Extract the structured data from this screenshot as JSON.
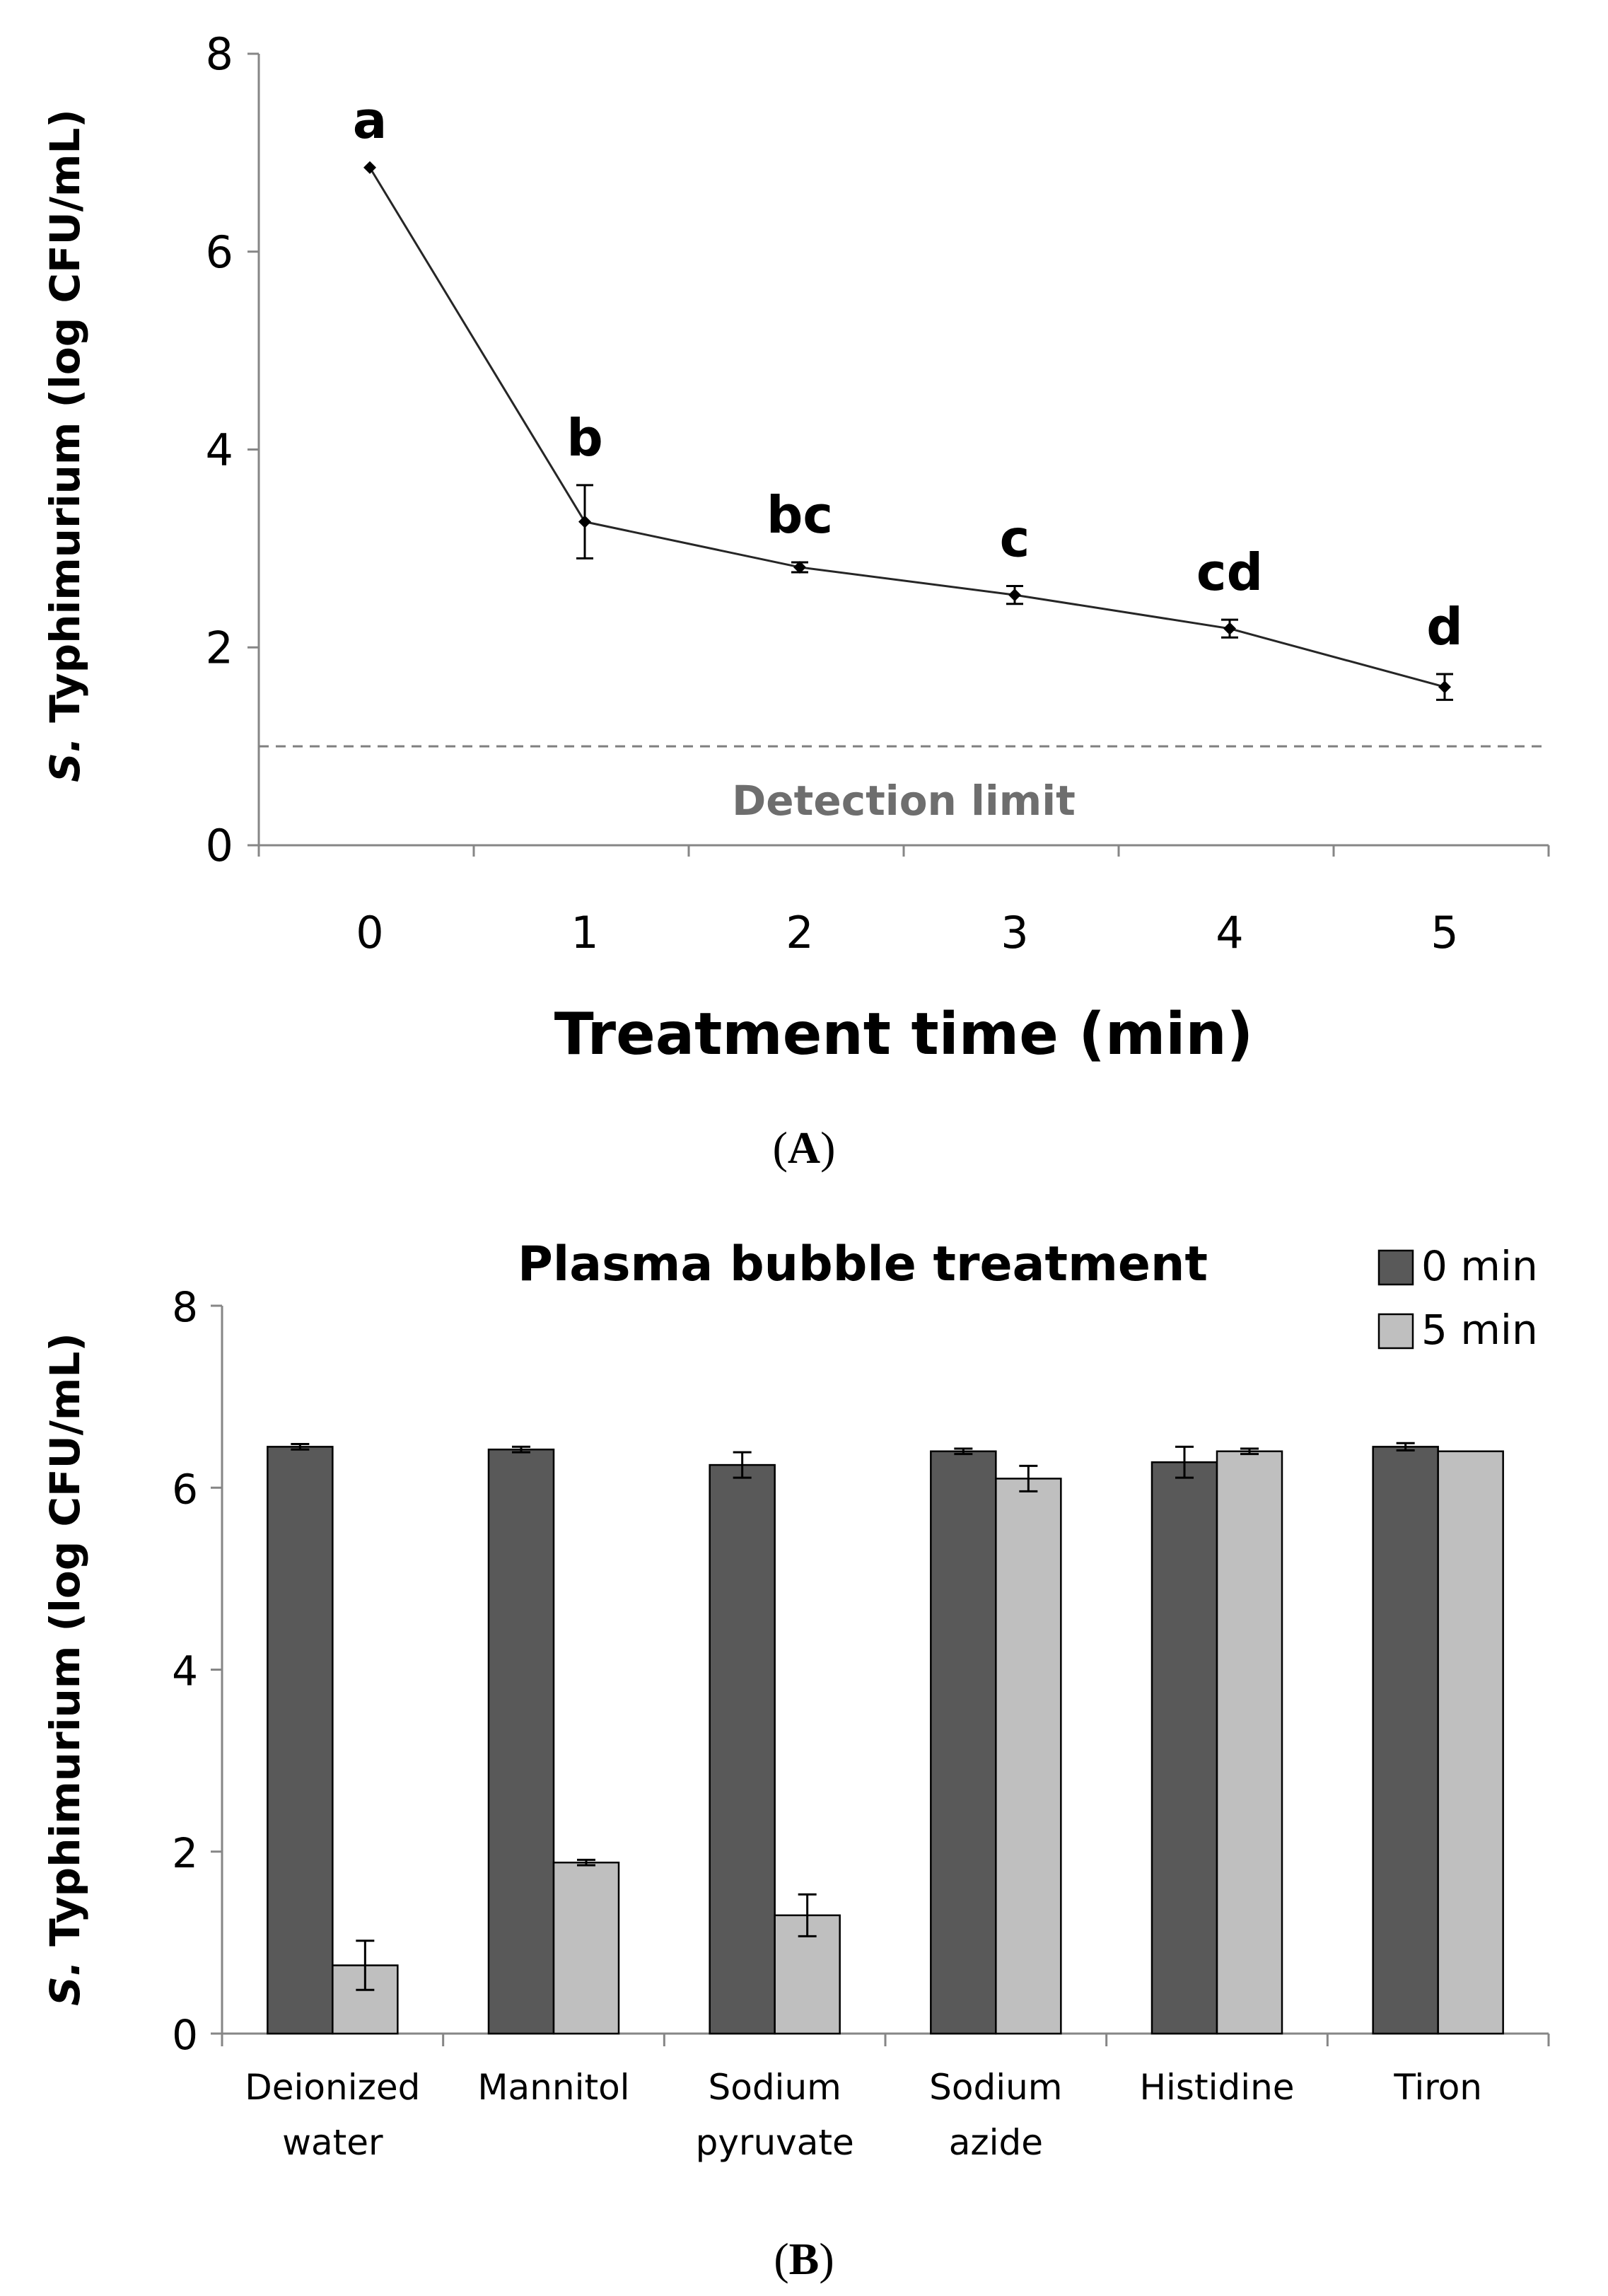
{
  "chart_data": [
    {
      "panel_label": "A",
      "type": "line",
      "x": [
        0,
        1,
        2,
        3,
        4,
        5
      ],
      "y": [
        6.85,
        3.27,
        2.81,
        2.53,
        2.19,
        1.6
      ],
      "error": [
        0.0,
        0.37,
        0.05,
        0.09,
        0.09,
        0.13
      ],
      "letters": [
        "a",
        "b",
        "bc",
        "c",
        "cd",
        "d"
      ],
      "xlabel": "Treatment time (min)",
      "ylabel_italic": "S.",
      "ylabel_rest": " Typhimurium  (log CFU/mL)",
      "xlim": [
        0,
        5
      ],
      "ylim": [
        0,
        8
      ],
      "yticks": [
        0,
        2,
        4,
        6,
        8
      ],
      "detection_limit": 1.0,
      "detection_limit_label": "Detection limit"
    },
    {
      "panel_label": "B",
      "type": "bar",
      "title": "Plasma bubble treatment",
      "categories": [
        [
          "Deionized",
          "water"
        ],
        [
          "Mannitol"
        ],
        [
          "Sodium",
          "pyruvate"
        ],
        [
          "Sodium",
          "azide"
        ],
        [
          "Histidine"
        ],
        [
          "Tiron"
        ]
      ],
      "series": [
        {
          "name": "0 min",
          "color": "#595959",
          "values": [
            6.45,
            6.42,
            6.25,
            6.4,
            6.28,
            6.45
          ],
          "errors": [
            0.03,
            0.03,
            0.14,
            0.03,
            0.17,
            0.04
          ]
        },
        {
          "name": "5 min",
          "color": "#bfbfbf",
          "values": [
            0.75,
            1.88,
            1.3,
            6.1,
            6.4,
            6.4
          ],
          "errors": [
            0.27,
            0.03,
            0.23,
            0.14,
            0.03,
            0.0
          ]
        }
      ],
      "ylabel_italic": "S.",
      "ylabel_rest": " Typhimurium  (log CFU/mL)",
      "ylim": [
        0,
        8
      ],
      "yticks": [
        0,
        2,
        4,
        6,
        8
      ],
      "legend_position": "top-right"
    }
  ]
}
